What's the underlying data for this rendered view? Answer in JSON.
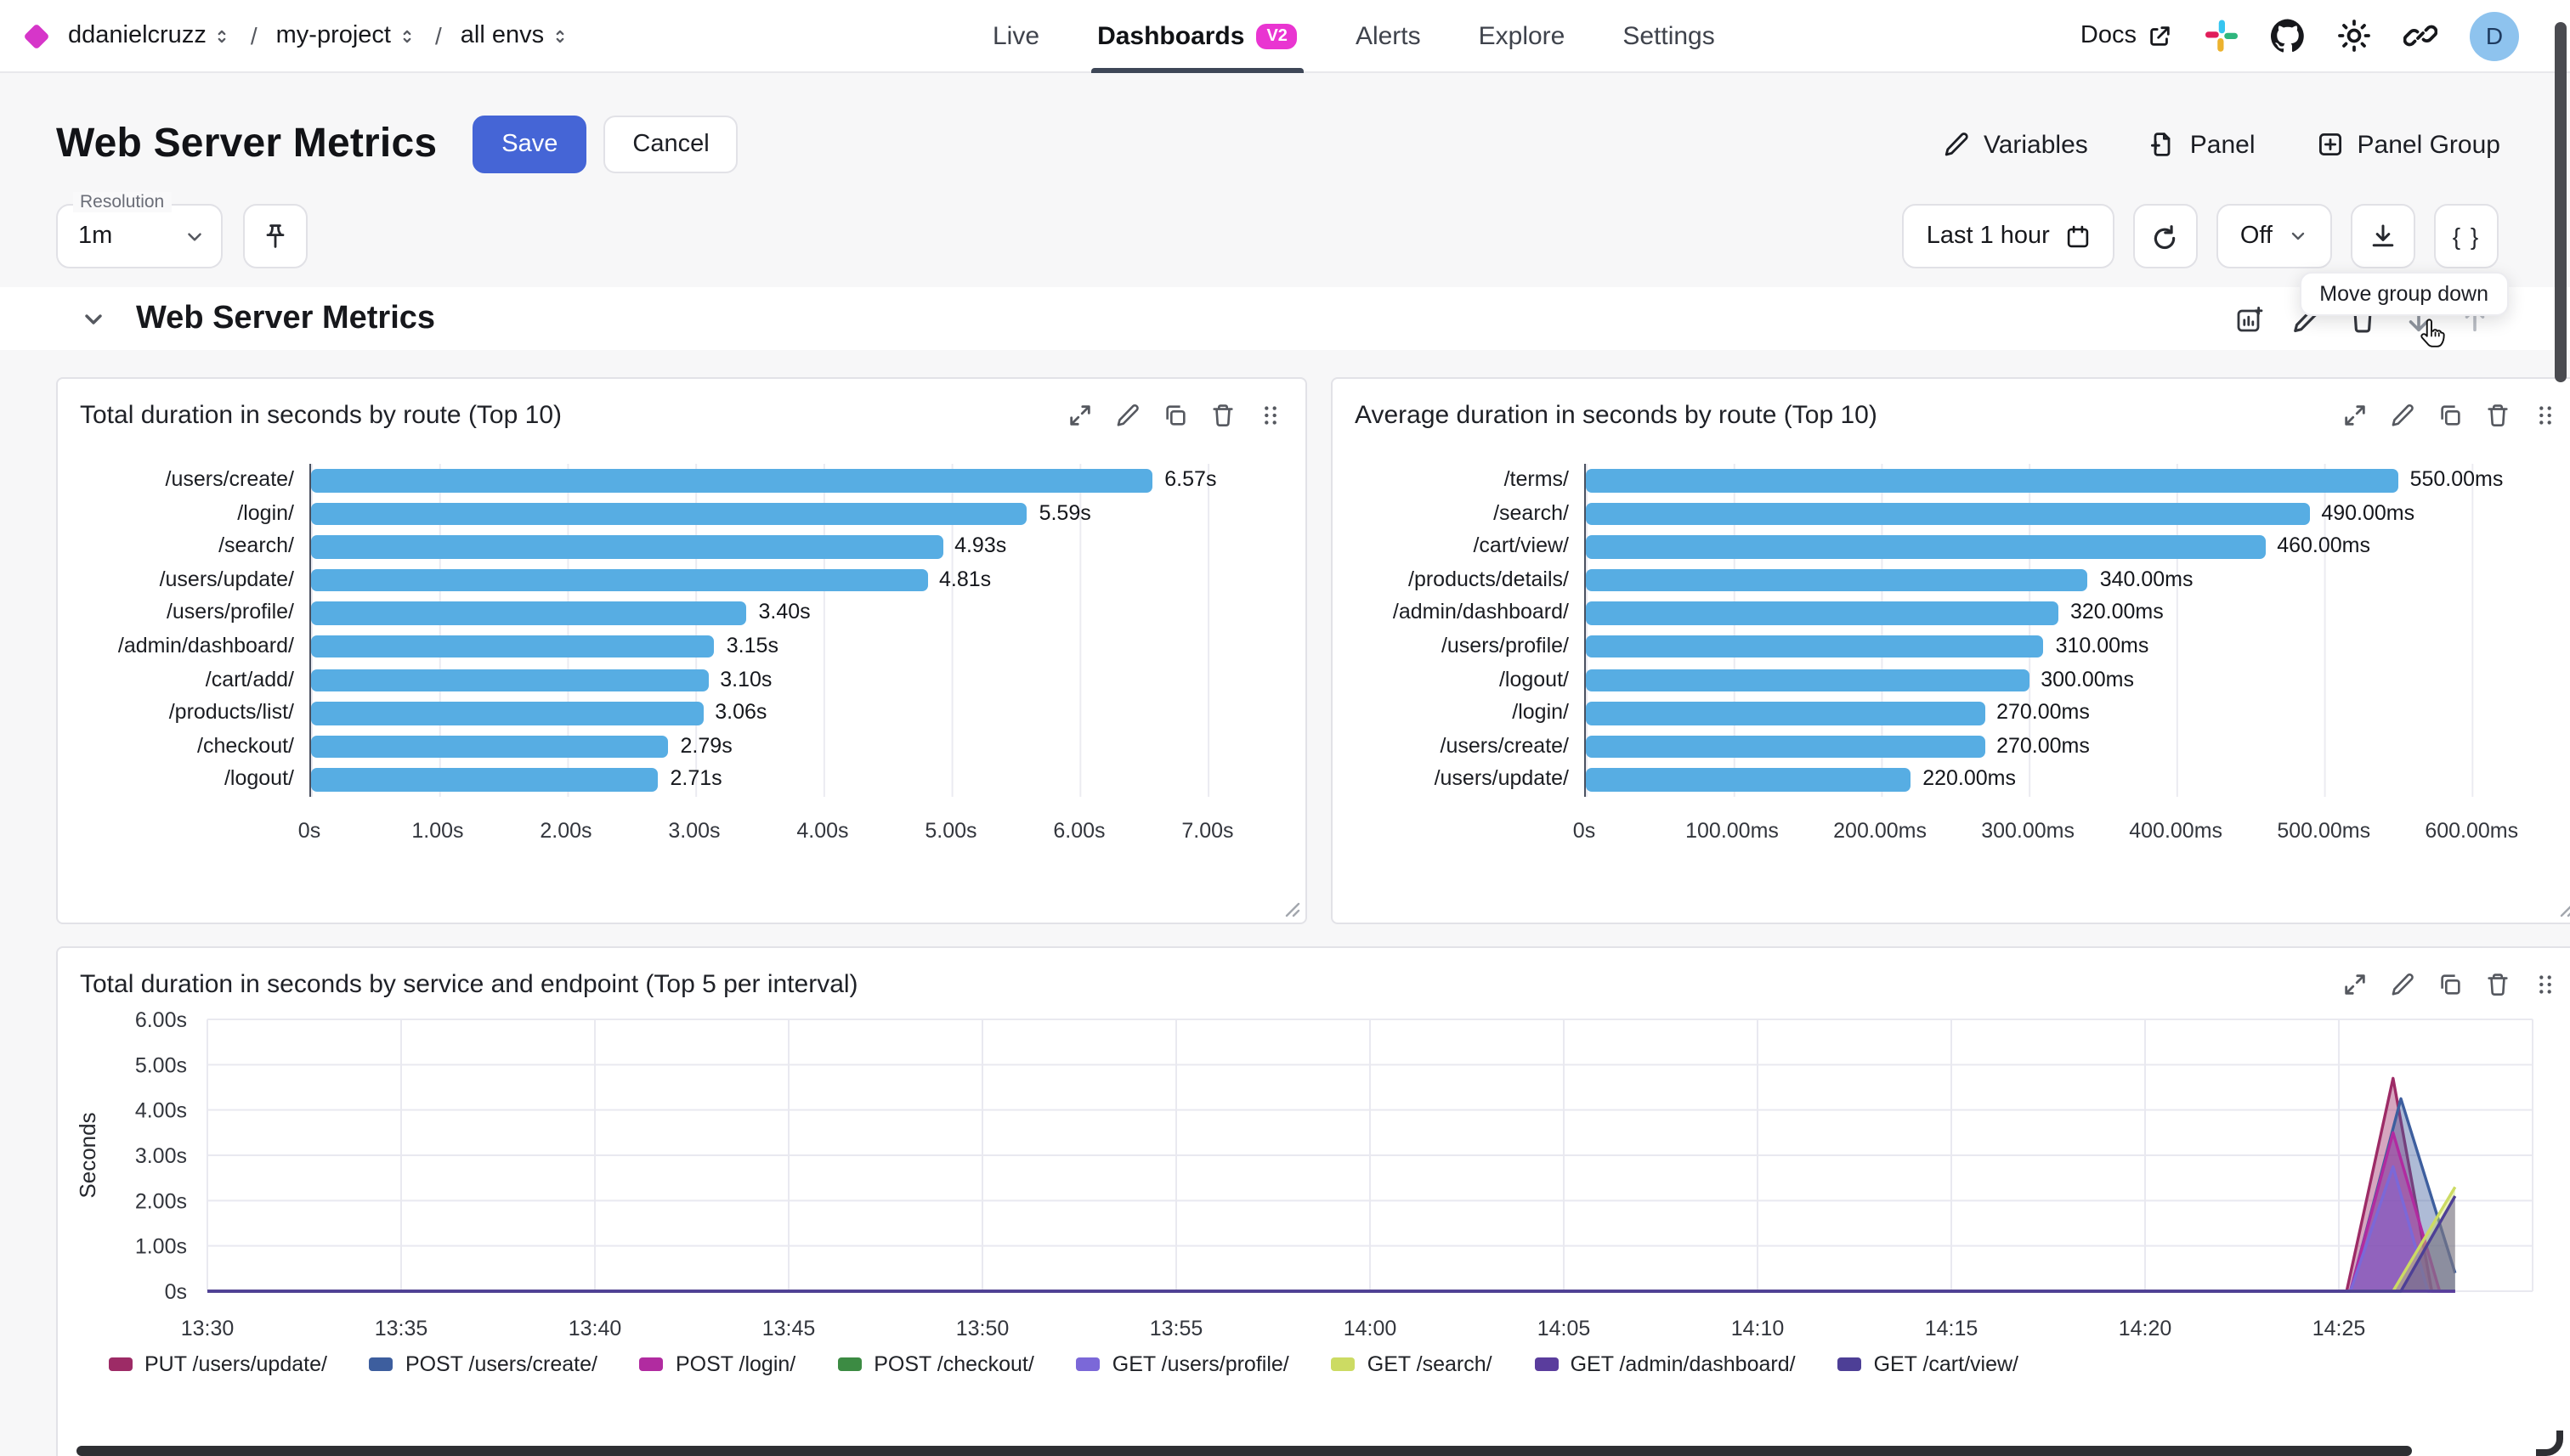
{
  "nav": {
    "breadcrumb": [
      {
        "label": "ddanielcruzz"
      },
      {
        "label": "my-project"
      },
      {
        "label": "all envs"
      }
    ],
    "tabs": [
      {
        "label": "Live",
        "active": false
      },
      {
        "label": "Dashboards",
        "badge": "V2",
        "active": true
      },
      {
        "label": "Alerts",
        "active": false
      },
      {
        "label": "Explore",
        "active": false
      },
      {
        "label": "Settings",
        "active": false
      }
    ],
    "docs_label": "Docs",
    "avatar_initial": "D"
  },
  "header": {
    "title": "Web Server Metrics",
    "save_label": "Save",
    "cancel_label": "Cancel",
    "variables_label": "Variables",
    "panel_label": "Panel",
    "panel_group_label": "Panel Group"
  },
  "toolbar": {
    "resolution_label": "Resolution",
    "resolution_value": "1m",
    "time_range_value": "Last 1 hour",
    "refresh_value": "Off",
    "braces_label": "{ }",
    "tooltip_text": "Move group down"
  },
  "section": {
    "title": "Web Server Metrics"
  },
  "colors": {
    "accent_blue": "#4565d6",
    "bar_blue": "#57ade3",
    "badge_magenta": "#e935d1",
    "logo_magenta": "#d636c9"
  },
  "chart_data": [
    {
      "type": "bar",
      "orientation": "horizontal",
      "title": "Total duration in seconds by route (Top 10)",
      "categories": [
        "/users/create/",
        "/login/",
        "/search/",
        "/users/update/",
        "/users/profile/",
        "/admin/dashboard/",
        "/cart/add/",
        "/products/list/",
        "/checkout/",
        "/logout/"
      ],
      "values": [
        6.57,
        5.59,
        4.93,
        4.81,
        3.4,
        3.15,
        3.1,
        3.06,
        2.79,
        2.71
      ],
      "value_labels": [
        "6.57s",
        "5.59s",
        "4.93s",
        "4.81s",
        "3.40s",
        "3.15s",
        "3.10s",
        "3.06s",
        "2.79s",
        "2.71s"
      ],
      "x_ticks": [
        {
          "v": 0,
          "label": "0s"
        },
        {
          "v": 1,
          "label": "1.00s"
        },
        {
          "v": 2,
          "label": "2.00s"
        },
        {
          "v": 3,
          "label": "3.00s"
        },
        {
          "v": 4,
          "label": "4.00s"
        },
        {
          "v": 5,
          "label": "5.00s"
        },
        {
          "v": 6,
          "label": "6.00s"
        },
        {
          "v": 7,
          "label": "7.00s"
        }
      ],
      "axis_max": 7.55,
      "tick_interval": 1,
      "bar_color": "#57ade3",
      "grid": true
    },
    {
      "type": "bar",
      "orientation": "horizontal",
      "title": "Average duration in seconds by route (Top 10)",
      "categories": [
        "/terms/",
        "/search/",
        "/cart/view/",
        "/products/details/",
        "/admin/dashboard/",
        "/users/profile/",
        "/logout/",
        "/login/",
        "/users/create/",
        "/users/update/"
      ],
      "values": [
        550,
        490,
        460,
        340,
        320,
        310,
        300,
        270,
        270,
        220
      ],
      "value_labels": [
        "550.00ms",
        "490.00ms",
        "460.00ms",
        "340.00ms",
        "320.00ms",
        "310.00ms",
        "300.00ms",
        "270.00ms",
        "270.00ms",
        "220.00ms"
      ],
      "x_ticks": [
        {
          "v": 0,
          "label": "0s"
        },
        {
          "v": 100,
          "label": "100.00ms"
        },
        {
          "v": 200,
          "label": "200.00ms"
        },
        {
          "v": 300,
          "label": "300.00ms"
        },
        {
          "v": 400,
          "label": "400.00ms"
        },
        {
          "v": 500,
          "label": "500.00ms"
        },
        {
          "v": 600,
          "label": "600.00ms"
        }
      ],
      "axis_max": 655,
      "tick_interval": 100,
      "bar_color": "#57ade3",
      "grid": true
    },
    {
      "type": "line",
      "title": "Total duration in seconds by service and endpoint (Top 5 per interval)",
      "ylabel": "Seconds",
      "y_ticks": [
        {
          "v": 0,
          "label": "0s"
        },
        {
          "v": 1,
          "label": "1.00s"
        },
        {
          "v": 2,
          "label": "2.00s"
        },
        {
          "v": 3,
          "label": "3.00s"
        },
        {
          "v": 4,
          "label": "4.00s"
        },
        {
          "v": 5,
          "label": "5.00s"
        },
        {
          "v": 6,
          "label": "6.00s"
        }
      ],
      "x_tick_labels": [
        "13:30",
        "13:35",
        "13:40",
        "13:45",
        "13:50",
        "13:55",
        "14:00",
        "14:05",
        "14:10",
        "14:15",
        "14:20",
        "14:25"
      ],
      "x_start": "13:30",
      "x_range_minutes": 60,
      "data_end_minute": 58,
      "grid": true,
      "legend_position": "bottom",
      "series": [
        {
          "name": "PUT /users/update/",
          "color": "#9d2b66",
          "points": [
            [
              0,
              0
            ],
            [
              55.2,
              0
            ],
            [
              56.4,
              4.7
            ],
            [
              57.4,
              0
            ],
            [
              58,
              0
            ]
          ]
        },
        {
          "name": "POST /users/create/",
          "color": "#3d5e9e",
          "points": [
            [
              0,
              0
            ],
            [
              55.3,
              0
            ],
            [
              56.6,
              4.25
            ],
            [
              58,
              0.4
            ]
          ]
        },
        {
          "name": "POST /login/",
          "color": "#b12ba0",
          "points": [
            [
              0,
              0
            ],
            [
              55.3,
              0
            ],
            [
              56.4,
              3.5
            ],
            [
              57.6,
              0
            ],
            [
              58,
              0
            ]
          ]
        },
        {
          "name": "POST /checkout/",
          "color": "#3c8b43",
          "points": [
            [
              0,
              0
            ],
            [
              58,
              0
            ]
          ]
        },
        {
          "name": "GET /users/profile/",
          "color": "#7b68d8",
          "points": [
            [
              0,
              0
            ],
            [
              55.3,
              0
            ],
            [
              56.4,
              2.75
            ],
            [
              57.3,
              0
            ],
            [
              58,
              0
            ]
          ]
        },
        {
          "name": "GET /search/",
          "color": "#ccdb63",
          "points": [
            [
              0,
              0
            ],
            [
              56.4,
              0
            ],
            [
              58,
              2.3
            ]
          ]
        },
        {
          "name": "GET /admin/dashboard/",
          "color": "#5a3d9d",
          "points": [
            [
              0,
              0
            ],
            [
              58,
              0
            ]
          ]
        },
        {
          "name": "GET /cart/view/",
          "color": "#4d3f96",
          "points": [
            [
              0,
              0
            ],
            [
              56.6,
              0
            ],
            [
              58,
              2.1
            ]
          ]
        }
      ]
    }
  ]
}
